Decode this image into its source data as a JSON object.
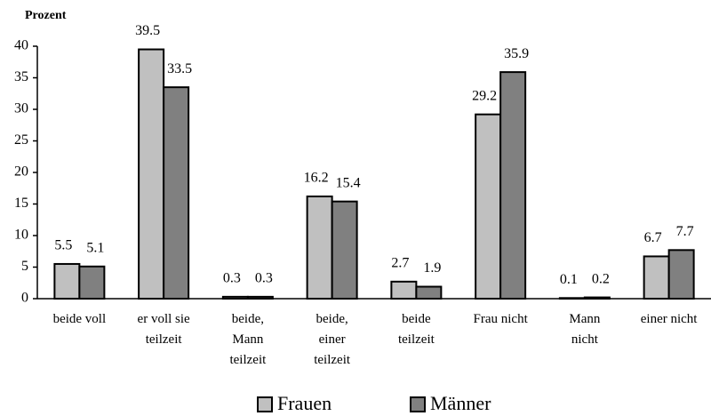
{
  "chart_data": {
    "type": "bar",
    "y_label": "Prozent",
    "categories": [
      "beide voll",
      "er voll sie\nteilzeit",
      "beide,\nMann\nteilzeit",
      "beide,\neiner\nteilzeit",
      "beide\nteilzeit",
      "Frau nicht",
      "Mann\nnicht",
      "einer nicht"
    ],
    "series": [
      {
        "name": "Frauen",
        "color": "#c0c0c0",
        "values": [
          5.5,
          39.5,
          0.3,
          16.2,
          2.7,
          29.2,
          0.1,
          6.7
        ]
      },
      {
        "name": "Männer",
        "color": "#808080",
        "values": [
          5.1,
          33.5,
          0.3,
          15.4,
          1.9,
          35.9,
          0.2,
          7.7
        ]
      }
    ],
    "ylim": [
      0,
      40
    ],
    "yticks": [
      0,
      5,
      10,
      15,
      20,
      25,
      30,
      35,
      40
    ],
    "grid": false,
    "legend": "bottom"
  }
}
